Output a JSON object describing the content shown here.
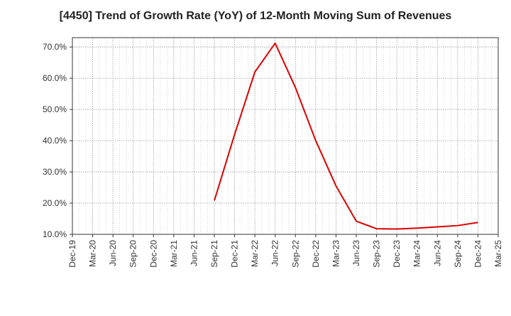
{
  "chart_data": {
    "type": "line",
    "title": "[4450]  Trend of Growth Rate (YoY) of 12-Month Moving Sum of Revenues",
    "xlabel": "",
    "ylabel": "",
    "ylim": [
      10,
      73
    ],
    "y_ticks": [
      10,
      20,
      30,
      40,
      50,
      60,
      70
    ],
    "y_tick_labels": [
      "10.0%",
      "20.0%",
      "30.0%",
      "40.0%",
      "50.0%",
      "60.0%",
      "70.0%"
    ],
    "x_tick_labels": [
      "Dec-19",
      "Mar-20",
      "Jun-20",
      "Sep-20",
      "Dec-20",
      "Mar-21",
      "Jun-21",
      "Sep-21",
      "Dec-21",
      "Mar-22",
      "Jun-22",
      "Sep-22",
      "Dec-22",
      "Mar-23",
      "Jun-23",
      "Sep-23",
      "Dec-23",
      "Mar-24",
      "Jun-24",
      "Sep-24",
      "Dec-24",
      "Mar-25"
    ],
    "grid": true,
    "series": [
      {
        "color": "#dd0000",
        "x": [
          "Sep-21",
          "Dec-21",
          "Mar-22",
          "Jun-22",
          "Sep-22",
          "Dec-22",
          "Mar-23",
          "Jun-23",
          "Sep-23",
          "Dec-23",
          "Mar-24",
          "Jun-24",
          "Sep-24",
          "Dec-24"
        ],
        "values": [
          20.8,
          42.0,
          62.0,
          71.2,
          57.0,
          40.0,
          25.5,
          14.2,
          11.8,
          11.7,
          12.0,
          12.4,
          12.8,
          13.8
        ]
      }
    ]
  }
}
